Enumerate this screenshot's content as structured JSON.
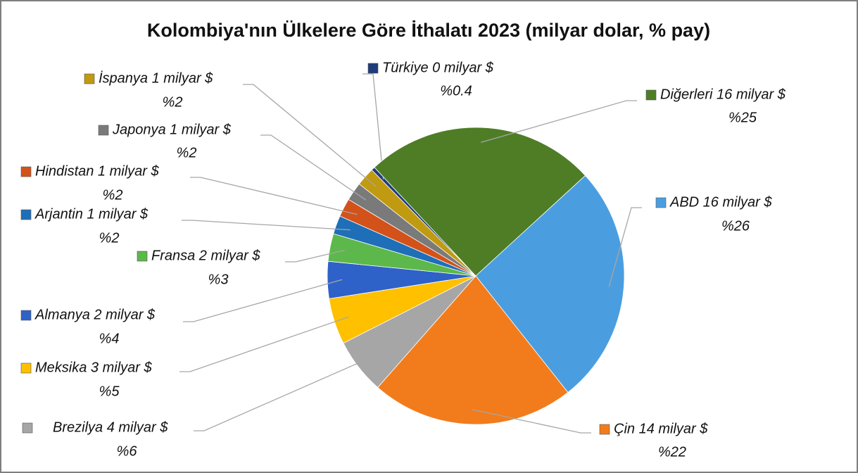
{
  "chart_data": {
    "type": "pie",
    "title": "Kolombiya'nın Ülkelere Göre İthalatı 2023 (milyar dolar, % pay)",
    "categories": [
      "Türkiye 0 milyar $",
      "Diğerleri 16 milyar $",
      "ABD 16 milyar $",
      "Çin 14 milyar $",
      "Brezilya 4 milyar $",
      "Meksika 3 milyar $",
      "Almanya 2 milyar $",
      "Fransa 2 milyar $",
      "Arjantin 1 milyar $",
      "Hindistan 1 milyar $",
      "Japonya 1 milyar $",
      "İspanya 1 milyar $"
    ],
    "values": [
      0.4,
      25,
      26,
      22,
      6,
      5,
      4,
      3,
      2,
      2,
      2,
      2
    ],
    "value_labels": [
      "%0.4",
      "%25",
      "%26",
      "%22",
      "%6",
      "%5",
      "%4",
      "%3",
      "%2",
      "%2",
      "%2",
      "%2"
    ],
    "colors": [
      "#1f3d7a",
      "#4e7d26",
      "#4a9ee0",
      "#f27c1c",
      "#a6a6a6",
      "#ffc000",
      "#2e62c8",
      "#5cb84a",
      "#1e6fb8",
      "#d2521a",
      "#7a7a7a",
      "#c09a10"
    ]
  }
}
